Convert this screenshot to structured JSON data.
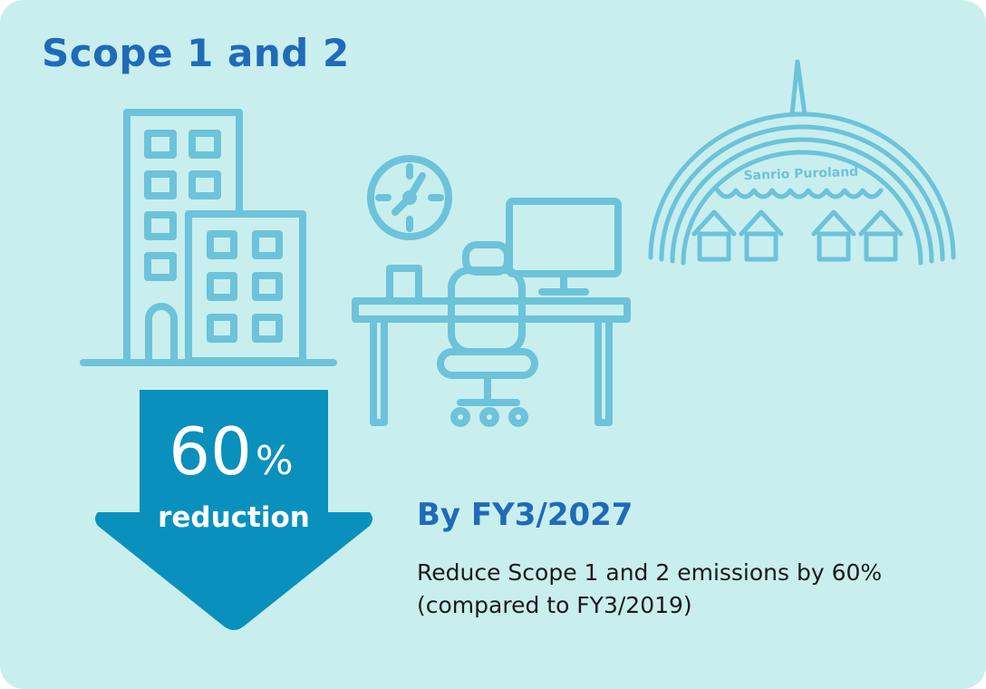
{
  "title": "Scope 1 and 2",
  "reduction": {
    "value": "60",
    "unit": "%",
    "label": "reduction"
  },
  "target": {
    "heading": "By FY3/2027",
    "description": "Reduce Scope 1 and 2 emissions by 60% (compared to FY3/2019)"
  },
  "illustrations": {
    "buildings": "office-buildings-icon",
    "clock": "wall-clock-icon",
    "desk": "office-desk-icon",
    "theme_park": "theme-park-dome-icon",
    "theme_park_sign": "Sanrio Puroland"
  },
  "colors": {
    "background": "#c9eeee",
    "title": "#1f6bb8",
    "icon_stroke": "#6cc3da",
    "arrow": "#0a90bd"
  }
}
